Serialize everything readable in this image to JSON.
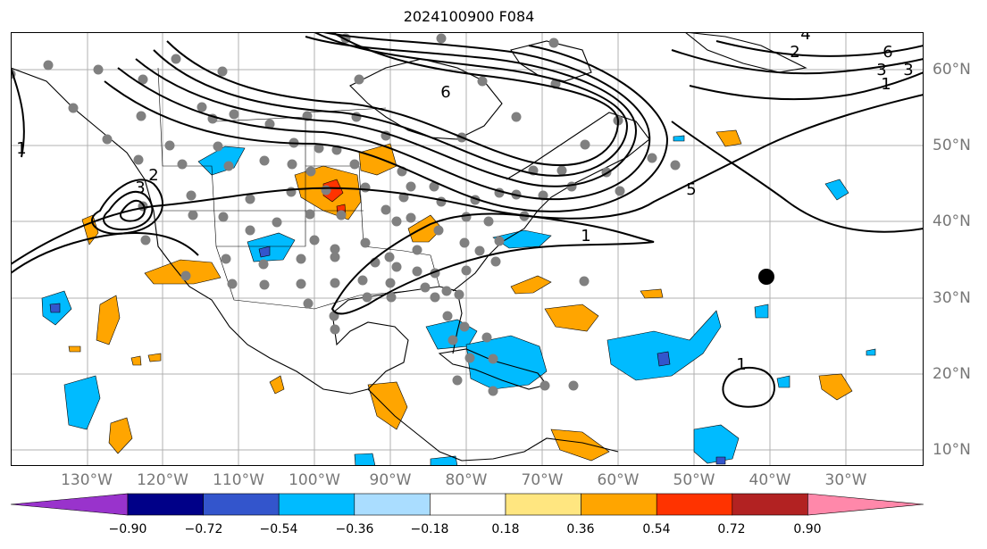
{
  "title": "2024100900 F084",
  "lon_labels": [
    "130°W",
    "120°W",
    "110°W",
    "100°W",
    "90°W",
    "80°W",
    "70°W",
    "60°W",
    "50°W",
    "40°W",
    "30°W"
  ],
  "lat_labels": [
    "60°N",
    "50°N",
    "40°N",
    "30°N",
    "20°N",
    "10°N"
  ],
  "colorbar": {
    "ticks": [
      "−0.90",
      "−0.72",
      "−0.54",
      "−0.36",
      "−0.18",
      "0.18",
      "0.36",
      "0.54",
      "0.72",
      "0.90"
    ],
    "colors": [
      "#9933cc",
      "#000088",
      "#3355cc",
      "#00bbff",
      "#aaddff",
      "#ffffff",
      "#ffe680",
      "#ffa500",
      "#ff3300",
      "#b22222",
      "#ff88aa"
    ]
  },
  "contour_labels": [
    "6",
    "2",
    "3",
    "3",
    "1",
    "1",
    "6",
    "2",
    "3",
    "1",
    "5",
    "1",
    "4"
  ],
  "colors": {
    "accent_positive": "#ffa500",
    "accent_negative": "#00bbff",
    "station": "#808080",
    "grid": "#b0b0b0"
  }
}
